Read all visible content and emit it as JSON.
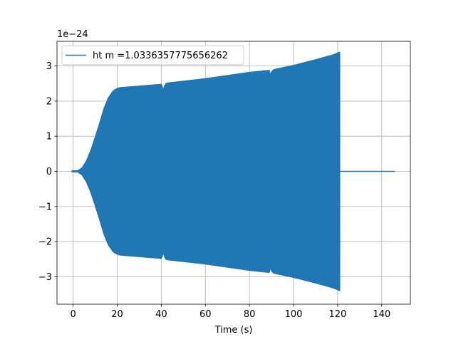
{
  "chart_data": {
    "type": "line",
    "title": "",
    "xlabel": "Time (s)",
    "ylabel": "",
    "y_offset_label": "1e−24",
    "xlim": [
      -7.3,
      153
    ],
    "ylim": [
      -3.78,
      3.7
    ],
    "x_ticks": [
      0,
      20,
      40,
      60,
      80,
      100,
      120,
      140
    ],
    "x_tick_labels": [
      "0",
      "20",
      "40",
      "60",
      "80",
      "100",
      "120",
      "140"
    ],
    "y_ticks": [
      3,
      2,
      1,
      0,
      -1,
      -2,
      -3
    ],
    "y_tick_labels": [
      "3",
      "2",
      "1",
      "0",
      "−1",
      "−2",
      "−3"
    ],
    "grid": true,
    "legend_position": "upper-left",
    "series": [
      {
        "name": "ht m =1.0336357775656262",
        "color": "#1f77b4",
        "render": "oscillation-envelope",
        "envelope": {
          "x": [
            -0.5,
            2,
            4,
            6,
            8,
            10,
            12,
            14,
            16,
            18,
            19,
            20,
            21,
            22,
            40,
            41,
            41.5,
            42,
            43,
            60,
            80,
            89,
            89.5,
            90,
            91,
            100,
            110,
            118,
            121
          ],
          "upper": [
            0.02,
            0.02,
            0.1,
            0.3,
            0.6,
            0.98,
            1.38,
            1.8,
            2.1,
            2.28,
            2.33,
            2.36,
            2.38,
            2.39,
            2.48,
            2.34,
            2.44,
            2.5,
            2.52,
            2.64,
            2.82,
            2.88,
            2.75,
            2.84,
            2.9,
            3.02,
            3.18,
            3.32,
            3.4
          ],
          "lower": [
            -0.02,
            -0.02,
            -0.1,
            -0.3,
            -0.6,
            -0.98,
            -1.38,
            -1.8,
            -2.1,
            -2.28,
            -2.33,
            -2.36,
            -2.38,
            -2.39,
            -2.48,
            -2.34,
            -2.44,
            -2.5,
            -2.52,
            -2.64,
            -2.82,
            -2.88,
            -2.75,
            -2.84,
            -2.9,
            -3.02,
            -3.18,
            -3.32,
            -3.4
          ]
        },
        "tail": {
          "x": [
            121,
            146
          ],
          "y": [
            0,
            0
          ]
        }
      }
    ]
  }
}
